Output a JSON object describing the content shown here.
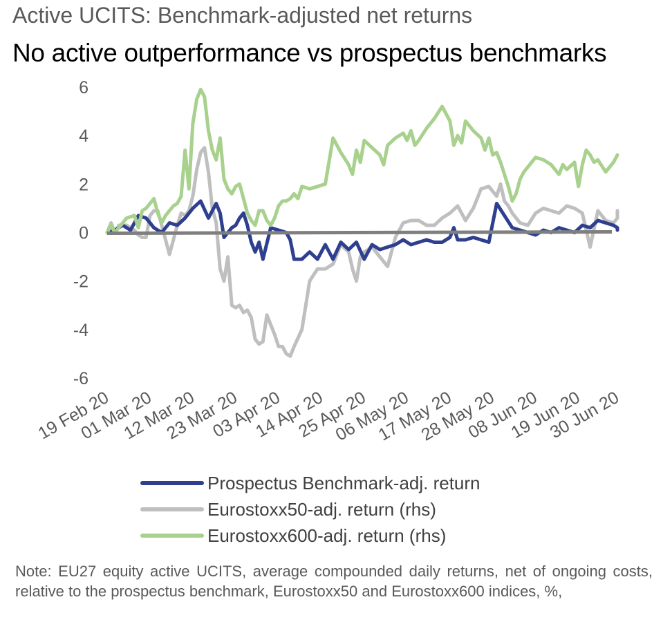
{
  "header": {
    "kicker": "Active UCITS: Benchmark-adjusted net returns",
    "title": "No active outperformance vs prospectus benchmarks"
  },
  "chart_data": {
    "type": "line",
    "title": "No active outperformance vs prospectus benchmarks",
    "subtitle": "Active UCITS: Benchmark-adjusted net returns",
    "xlabel": "",
    "ylabel": "",
    "ylim": [
      -6,
      6
    ],
    "yticks": [
      6,
      4,
      2,
      0,
      -2,
      -4,
      -6
    ],
    "ytick_labels": [
      "6",
      "4",
      "2",
      "0",
      "-2",
      "-4",
      "-6"
    ],
    "x_range": [
      0,
      131
    ],
    "xticks": [
      0,
      11,
      22,
      33,
      44,
      55,
      66,
      77,
      88,
      99,
      110,
      121,
      131
    ],
    "xtick_labels": [
      "19 Feb 20",
      "01 Mar 20",
      "12 Mar 20",
      "23 Mar 20",
      "03 Apr 20",
      "14 Apr 20",
      "25 Apr 20",
      "06 May 20",
      "17 May 20",
      "28 May 20",
      "08 Jun 20",
      "19 Jun 20",
      "30 Jun 20"
    ],
    "zero_line": true,
    "grid": false,
    "legend_position": "bottom",
    "series": [
      {
        "name": "Prospectus Benchmark-adj. return",
        "color": "#2e3f8f",
        "points": [
          [
            0,
            0.0
          ],
          [
            2,
            0.1
          ],
          [
            4,
            0.3
          ],
          [
            6,
            0.1
          ],
          [
            8,
            0.7
          ],
          [
            10,
            0.6
          ],
          [
            12,
            0.2
          ],
          [
            14,
            0.0
          ],
          [
            16,
            0.4
          ],
          [
            18,
            0.3
          ],
          [
            20,
            0.6
          ],
          [
            22,
            1.0
          ],
          [
            24,
            1.3
          ],
          [
            26,
            0.6
          ],
          [
            28,
            1.2
          ],
          [
            29,
            0.8
          ],
          [
            30,
            -0.2
          ],
          [
            31,
            0.0
          ],
          [
            32,
            0.2
          ],
          [
            33,
            0.3
          ],
          [
            34,
            0.6
          ],
          [
            35,
            0.8
          ],
          [
            36,
            0.3
          ],
          [
            37,
            -0.4
          ],
          [
            38,
            -0.8
          ],
          [
            39,
            -0.4
          ],
          [
            40,
            -1.1
          ],
          [
            42,
            0.2
          ],
          [
            44,
            0.1
          ],
          [
            46,
            0.0
          ],
          [
            47,
            -0.3
          ],
          [
            48,
            -1.1
          ],
          [
            50,
            -1.1
          ],
          [
            52,
            -0.8
          ],
          [
            54,
            -1.1
          ],
          [
            56,
            -0.5
          ],
          [
            58,
            -1.1
          ],
          [
            60,
            -0.4
          ],
          [
            62,
            -0.7
          ],
          [
            64,
            -0.4
          ],
          [
            66,
            -1.1
          ],
          [
            68,
            -0.5
          ],
          [
            70,
            -0.7
          ],
          [
            72,
            -0.6
          ],
          [
            74,
            -0.5
          ],
          [
            76,
            -0.3
          ],
          [
            78,
            -0.5
          ],
          [
            80,
            -0.4
          ],
          [
            82,
            -0.3
          ],
          [
            84,
            -0.4
          ],
          [
            86,
            -0.4
          ],
          [
            88,
            -0.2
          ],
          [
            89,
            0.2
          ],
          [
            90,
            -0.3
          ],
          [
            92,
            -0.3
          ],
          [
            94,
            -0.2
          ],
          [
            96,
            -0.3
          ],
          [
            98,
            -0.4
          ],
          [
            100,
            1.2
          ],
          [
            102,
            0.7
          ],
          [
            104,
            0.2
          ],
          [
            106,
            0.1
          ],
          [
            108,
            0.0
          ],
          [
            110,
            -0.1
          ],
          [
            112,
            0.1
          ],
          [
            114,
            0.0
          ],
          [
            116,
            0.2
          ],
          [
            118,
            0.1
          ],
          [
            120,
            0.0
          ],
          [
            122,
            0.3
          ],
          [
            124,
            0.2
          ],
          [
            126,
            0.5
          ],
          [
            128,
            0.4
          ],
          [
            130,
            0.3
          ],
          [
            132,
            0.2
          ],
          [
            134,
            0.1
          ]
        ]
      },
      {
        "name": "Eurostoxx50-adj. return (rhs)",
        "color": "#bfbfbf",
        "points": [
          [
            0,
            0.0
          ],
          [
            1,
            0.4
          ],
          [
            2,
            0.0
          ],
          [
            3,
            0.3
          ],
          [
            5,
            0.3
          ],
          [
            7,
            0.1
          ],
          [
            8,
            -0.1
          ],
          [
            9,
            -0.2
          ],
          [
            10,
            -0.2
          ],
          [
            11,
            0.7
          ],
          [
            12,
            0.9
          ],
          [
            13,
            0.9
          ],
          [
            14,
            0.3
          ],
          [
            15,
            -0.3
          ],
          [
            16,
            -0.9
          ],
          [
            17,
            -0.3
          ],
          [
            18,
            0.3
          ],
          [
            19,
            0.8
          ],
          [
            20,
            0.7
          ],
          [
            21,
            0.9
          ],
          [
            22,
            1.5
          ],
          [
            23,
            2.6
          ],
          [
            24,
            3.3
          ],
          [
            25,
            3.5
          ],
          [
            26,
            2.5
          ],
          [
            27,
            1.0
          ],
          [
            28,
            0.4
          ],
          [
            29,
            -1.5
          ],
          [
            30,
            -2.0
          ],
          [
            31,
            -1.0
          ],
          [
            32,
            -3.0
          ],
          [
            33,
            -3.1
          ],
          [
            34,
            -3.0
          ],
          [
            35,
            -3.3
          ],
          [
            36,
            -3.2
          ],
          [
            37,
            -3.5
          ],
          [
            38,
            -4.4
          ],
          [
            39,
            -4.6
          ],
          [
            40,
            -4.5
          ],
          [
            41,
            -3.4
          ],
          [
            42,
            -3.8
          ],
          [
            43,
            -4.2
          ],
          [
            44,
            -4.7
          ],
          [
            45,
            -4.7
          ],
          [
            46,
            -5.0
          ],
          [
            47,
            -5.1
          ],
          [
            48,
            -4.7
          ],
          [
            50,
            -4.0
          ],
          [
            52,
            -2.0
          ],
          [
            54,
            -1.5
          ],
          [
            56,
            -1.5
          ],
          [
            58,
            -1.3
          ],
          [
            60,
            -0.5
          ],
          [
            62,
            -0.8
          ],
          [
            63,
            -1.5
          ],
          [
            64,
            -2.0
          ],
          [
            65,
            -1.0
          ],
          [
            66,
            -0.8
          ],
          [
            68,
            -0.6
          ],
          [
            70,
            -1.0
          ],
          [
            72,
            -1.4
          ],
          [
            74,
            -0.2
          ],
          [
            76,
            0.4
          ],
          [
            78,
            0.5
          ],
          [
            80,
            0.5
          ],
          [
            82,
            0.3
          ],
          [
            84,
            0.3
          ],
          [
            86,
            0.6
          ],
          [
            88,
            0.8
          ],
          [
            90,
            1.1
          ],
          [
            92,
            0.5
          ],
          [
            94,
            1.0
          ],
          [
            96,
            1.8
          ],
          [
            98,
            1.9
          ],
          [
            100,
            1.5
          ],
          [
            101,
            2.0
          ],
          [
            102,
            1.3
          ],
          [
            103,
            1.1
          ],
          [
            104,
            0.8
          ],
          [
            106,
            0.4
          ],
          [
            108,
            0.3
          ],
          [
            110,
            0.8
          ],
          [
            112,
            1.0
          ],
          [
            114,
            0.9
          ],
          [
            116,
            0.8
          ],
          [
            118,
            1.1
          ],
          [
            120,
            1.0
          ],
          [
            122,
            0.8
          ],
          [
            124,
            -0.6
          ],
          [
            126,
            0.9
          ],
          [
            128,
            0.5
          ],
          [
            130,
            0.4
          ],
          [
            132,
            0.6
          ],
          [
            134,
            0.9
          ]
        ]
      },
      {
        "name": "Eurostoxx600-adj. return (rhs)",
        "color": "#a9d18e",
        "points": [
          [
            0,
            0.0
          ],
          [
            1,
            0.3
          ],
          [
            2,
            0.0
          ],
          [
            3,
            0.2
          ],
          [
            5,
            0.6
          ],
          [
            7,
            0.7
          ],
          [
            8,
            0.2
          ],
          [
            9,
            0.9
          ],
          [
            10,
            1.0
          ],
          [
            11,
            1.2
          ],
          [
            12,
            1.4
          ],
          [
            13,
            0.8
          ],
          [
            14,
            0.4
          ],
          [
            15,
            0.7
          ],
          [
            16,
            0.9
          ],
          [
            17,
            1.1
          ],
          [
            18,
            1.2
          ],
          [
            19,
            1.5
          ],
          [
            20,
            3.4
          ],
          [
            21,
            1.8
          ],
          [
            22,
            4.5
          ],
          [
            23,
            5.5
          ],
          [
            24,
            5.9
          ],
          [
            25,
            5.6
          ],
          [
            26,
            4.2
          ],
          [
            27,
            3.4
          ],
          [
            28,
            3.0
          ],
          [
            29,
            3.9
          ],
          [
            30,
            2.2
          ],
          [
            31,
            1.8
          ],
          [
            32,
            1.6
          ],
          [
            33,
            1.9
          ],
          [
            34,
            2.0
          ],
          [
            35,
            1.4
          ],
          [
            36,
            0.8
          ],
          [
            37,
            0.5
          ],
          [
            38,
            0.3
          ],
          [
            39,
            0.9
          ],
          [
            40,
            0.9
          ],
          [
            41,
            0.5
          ],
          [
            42,
            0.3
          ],
          [
            43,
            0.6
          ],
          [
            44,
            1.1
          ],
          [
            45,
            1.3
          ],
          [
            46,
            1.3
          ],
          [
            47,
            1.4
          ],
          [
            48,
            1.6
          ],
          [
            49,
            1.4
          ],
          [
            50,
            1.9
          ],
          [
            52,
            1.8
          ],
          [
            54,
            1.9
          ],
          [
            56,
            2.0
          ],
          [
            58,
            3.9
          ],
          [
            60,
            3.3
          ],
          [
            62,
            2.8
          ],
          [
            63,
            2.4
          ],
          [
            64,
            3.4
          ],
          [
            65,
            2.9
          ],
          [
            66,
            3.8
          ],
          [
            68,
            3.5
          ],
          [
            70,
            3.2
          ],
          [
            71,
            2.8
          ],
          [
            72,
            3.6
          ],
          [
            74,
            3.9
          ],
          [
            76,
            4.1
          ],
          [
            77,
            3.8
          ],
          [
            78,
            4.2
          ],
          [
            79,
            3.6
          ],
          [
            80,
            3.8
          ],
          [
            82,
            4.3
          ],
          [
            84,
            4.7
          ],
          [
            86,
            5.2
          ],
          [
            88,
            4.6
          ],
          [
            89,
            3.6
          ],
          [
            90,
            4.0
          ],
          [
            91,
            3.7
          ],
          [
            92,
            4.6
          ],
          [
            94,
            4.2
          ],
          [
            96,
            3.9
          ],
          [
            97,
            3.4
          ],
          [
            98,
            3.9
          ],
          [
            99,
            3.2
          ],
          [
            100,
            3.3
          ],
          [
            101,
            2.9
          ],
          [
            102,
            2.4
          ],
          [
            103,
            1.9
          ],
          [
            104,
            1.3
          ],
          [
            105,
            1.6
          ],
          [
            106,
            2.2
          ],
          [
            107,
            2.5
          ],
          [
            108,
            2.7
          ],
          [
            110,
            3.1
          ],
          [
            112,
            3.0
          ],
          [
            114,
            2.8
          ],
          [
            116,
            2.4
          ],
          [
            117,
            2.8
          ],
          [
            118,
            2.6
          ],
          [
            120,
            2.9
          ],
          [
            121,
            1.9
          ],
          [
            122,
            2.8
          ],
          [
            123,
            3.4
          ],
          [
            124,
            3.2
          ],
          [
            125,
            2.9
          ],
          [
            126,
            3.0
          ],
          [
            128,
            2.5
          ],
          [
            130,
            2.9
          ],
          [
            131,
            3.2
          ]
        ]
      }
    ]
  },
  "note": {
    "text": "Note: EU27 equity active UCITS, average compounded daily returns, net of ongoing costs, relative to the prospectus benchmark, Eurostoxx50 and Eurostoxx600 indices, %,"
  }
}
